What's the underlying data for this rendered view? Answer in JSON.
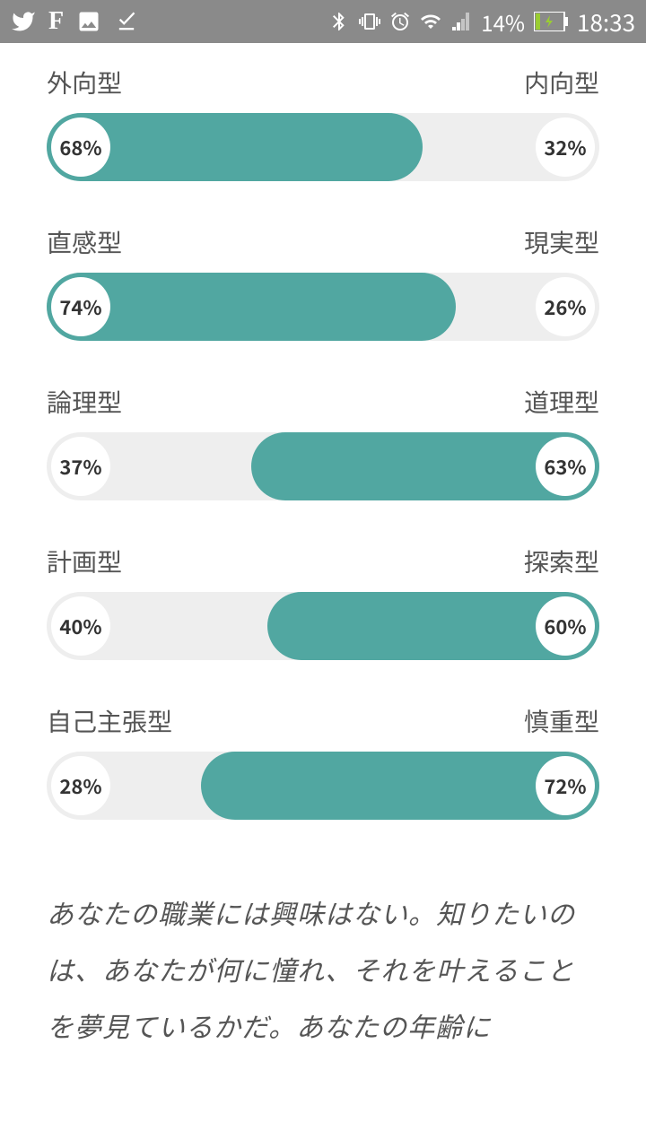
{
  "status": {
    "time": "18:33",
    "battery_pct": "14%"
  },
  "colors": {
    "accent": "#51a7a1",
    "track": "#eeeeee",
    "circle_bg": "#ffffff",
    "text": "#555555",
    "status_bg": "#8a8a8a"
  },
  "traits": [
    {
      "left_label": "外向型",
      "right_label": "内向型",
      "left_pct": 68,
      "right_pct": 32,
      "dominant": "left"
    },
    {
      "left_label": "直感型",
      "right_label": "現実型",
      "left_pct": 74,
      "right_pct": 26,
      "dominant": "left"
    },
    {
      "left_label": "論理型",
      "right_label": "道理型",
      "left_pct": 37,
      "right_pct": 63,
      "dominant": "right"
    },
    {
      "left_label": "計画型",
      "right_label": "探索型",
      "left_pct": 40,
      "right_pct": 60,
      "dominant": "right"
    },
    {
      "left_label": "自己主張型",
      "right_label": "慎重型",
      "left_pct": 28,
      "right_pct": 72,
      "dominant": "right"
    }
  ],
  "quote": "あなたの職業には興味はない。知りたいのは、あなたが何に憧れ、それを叶えることを夢見ているかだ。あなたの年齢に"
}
